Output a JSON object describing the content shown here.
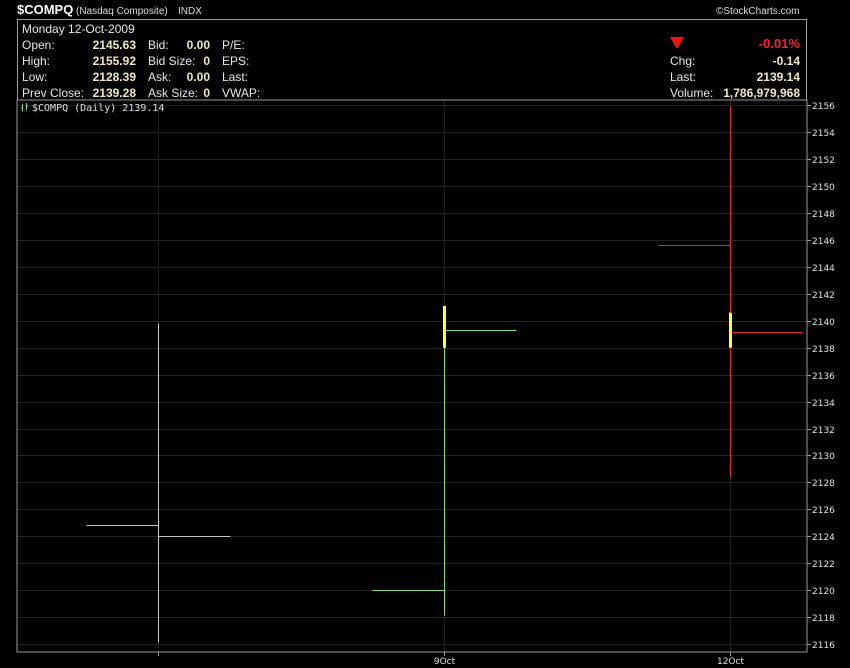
{
  "header": {
    "symbol": "$COMPQ",
    "name": "(Nasdaq Composite)",
    "exchange": "INDX",
    "brand": "©StockCharts.com",
    "date": "Monday 12-Oct-2009",
    "open_label": "Open:",
    "open": "2145.63",
    "high_label": "High:",
    "high": "2155.92",
    "low_label": "Low:",
    "low": "2128.39",
    "prev_close_label": "Prev Close:",
    "prev_close": "2139.28",
    "bid_label": "Bid:",
    "bid": "0.00",
    "bid_size_label": "Bid Size:",
    "bid_size": "0",
    "ask_label": "Ask:",
    "ask": "0.00",
    "ask_size_label": "Ask Size:",
    "ask_size": "0",
    "pe_label": "P/E:",
    "eps_label": "EPS:",
    "last_label2": "Last:",
    "vwap_label": "VWAP:",
    "change_pct": "-0.01%",
    "chg_label": "Chg:",
    "chg": "-0.14",
    "last_label": "Last:",
    "last": "2139.14",
    "volume_label": "Volume:",
    "volume": "1,786,979,968",
    "colors": {
      "down": "#ff2020",
      "value": "#f0e8c0"
    }
  },
  "chart_data": {
    "type": "ohlc",
    "legend": "$COMPQ (Daily) 2139.14",
    "ylim": [
      2115.4,
      2156.4
    ],
    "yticks": [
      2116,
      2118,
      2120,
      2122,
      2124,
      2126,
      2128,
      2130,
      2132,
      2134,
      2136,
      2138,
      2140,
      2142,
      2144,
      2146,
      2148,
      2150,
      2152,
      2154,
      2156
    ],
    "x_labels": [
      "",
      "9Oct",
      "12Oct"
    ],
    "bars": [
      {
        "label": "",
        "open": 2124.8,
        "high": 2139.8,
        "low": 2116.1,
        "close": 2124.0,
        "color": "#c8c8c8"
      },
      {
        "label": "9Oct",
        "open": 2120.0,
        "high": 2139.3,
        "low": 2118.1,
        "close": 2139.3,
        "color": "#7ee07e"
      },
      {
        "label": "12Oct",
        "open": 2145.63,
        "high": 2155.92,
        "low": 2128.39,
        "close": 2139.14,
        "color": "#ee2828"
      }
    ],
    "markers": [
      {
        "bar": 1,
        "from": 2138.0,
        "to": 2141.1,
        "color": "#ffff30"
      },
      {
        "bar": 2,
        "from": 2138.0,
        "to": 2140.6,
        "color": "#ffff30"
      }
    ],
    "grid": true
  }
}
